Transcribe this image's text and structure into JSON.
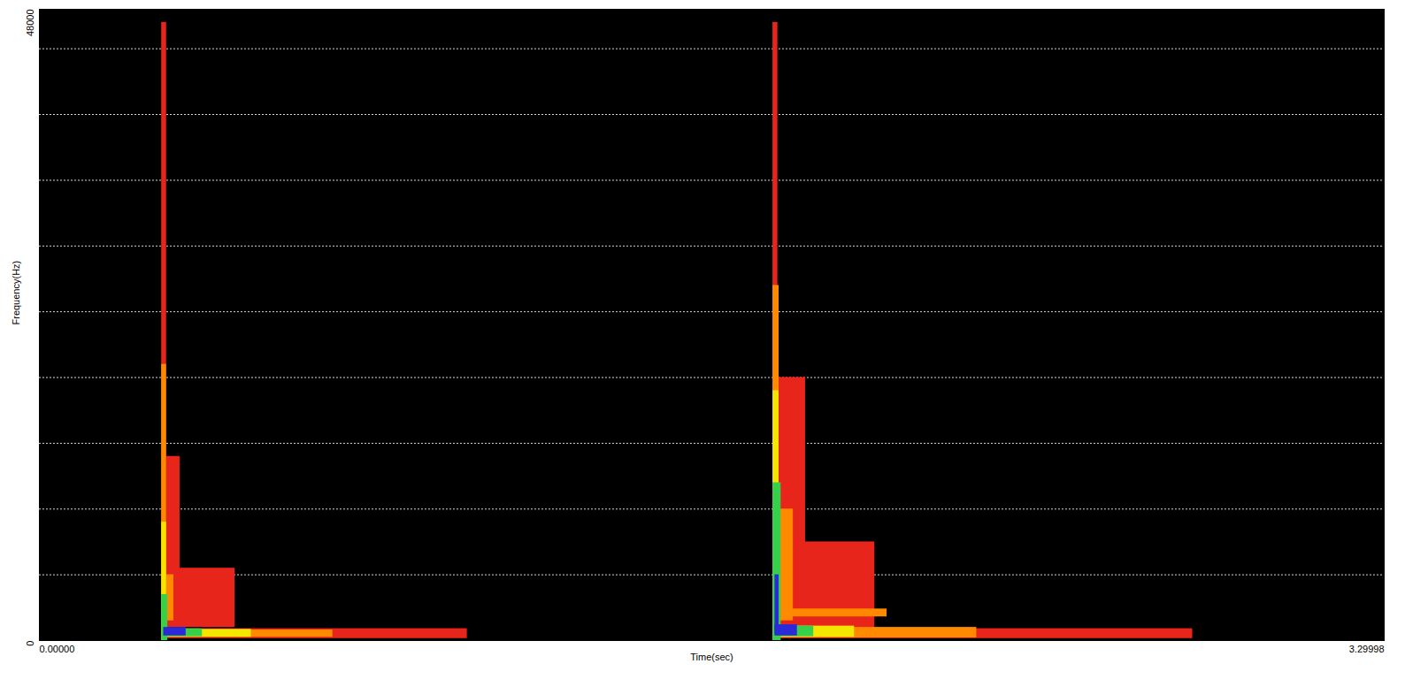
{
  "chart_data": {
    "type": "heatmap",
    "x_label": "Time(sec)",
    "y_label": "Frequency(Hz)",
    "xlim": [
      0,
      3.29998
    ],
    "ylim": [
      0,
      48000
    ],
    "xticks": [
      {
        "value": 0,
        "label": "0.00000"
      },
      3.29998
    ],
    "yticks": [
      0,
      48000
    ],
    "grid": true,
    "ygrid": [
      5000,
      10000,
      15000,
      20000,
      25000,
      30000,
      35000,
      40000,
      45000
    ],
    "levels": [
      1,
      2,
      3,
      4,
      5
    ],
    "level_colors": [
      "#e8251b",
      "#ff8a00",
      "#f5e600",
      "#36d04a",
      "#2a2ad8"
    ],
    "cells": [
      {
        "t0": 0.3,
        "t1": 0.312,
        "f0": 0,
        "f1": 47000,
        "level": 1
      },
      {
        "t0": 0.312,
        "t1": 0.345,
        "f0": 1500,
        "f1": 14000,
        "level": 1
      },
      {
        "t0": 0.312,
        "t1": 0.48,
        "f0": 1000,
        "f1": 5500,
        "level": 1
      },
      {
        "t0": 0.312,
        "t1": 1.05,
        "f0": 150,
        "f1": 900,
        "level": 1
      },
      {
        "t0": 0.3,
        "t1": 0.312,
        "f0": 0,
        "f1": 21000,
        "level": 2
      },
      {
        "t0": 0.312,
        "t1": 0.33,
        "f0": 1500,
        "f1": 5000,
        "level": 2
      },
      {
        "t0": 0.312,
        "t1": 0.72,
        "f0": 250,
        "f1": 800,
        "level": 2
      },
      {
        "t0": 0.3,
        "t1": 0.312,
        "f0": 0,
        "f1": 9000,
        "level": 3
      },
      {
        "t0": 0.312,
        "t1": 0.52,
        "f0": 250,
        "f1": 850,
        "level": 3
      },
      {
        "t0": 0.3,
        "t1": 0.315,
        "f0": 0,
        "f1": 3500,
        "level": 4
      },
      {
        "t0": 0.305,
        "t1": 0.4,
        "f0": 300,
        "f1": 900,
        "level": 4
      },
      {
        "t0": 0.305,
        "t1": 0.36,
        "f0": 350,
        "f1": 1000,
        "level": 5
      },
      {
        "t0": 1.8,
        "t1": 1.812,
        "f0": 0,
        "f1": 47000,
        "level": 1
      },
      {
        "t0": 1.812,
        "t1": 1.88,
        "f0": 1500,
        "f1": 20000,
        "level": 1
      },
      {
        "t0": 1.812,
        "t1": 2.05,
        "f0": 800,
        "f1": 7500,
        "level": 1
      },
      {
        "t0": 1.812,
        "t1": 2.83,
        "f0": 150,
        "f1": 900,
        "level": 1
      },
      {
        "t0": 1.8,
        "t1": 1.815,
        "f0": 0,
        "f1": 27000,
        "level": 2
      },
      {
        "t0": 1.812,
        "t1": 1.85,
        "f0": 1500,
        "f1": 10000,
        "level": 2
      },
      {
        "t0": 1.812,
        "t1": 2.08,
        "f0": 1800,
        "f1": 2400,
        "level": 2
      },
      {
        "t0": 1.812,
        "t1": 2.3,
        "f0": 200,
        "f1": 1000,
        "level": 2
      },
      {
        "t0": 1.8,
        "t1": 1.815,
        "f0": 0,
        "f1": 19000,
        "level": 3
      },
      {
        "t0": 1.812,
        "t1": 2.0,
        "f0": 250,
        "f1": 1100,
        "level": 3
      },
      {
        "t0": 1.8,
        "t1": 1.82,
        "f0": 0,
        "f1": 12000,
        "level": 4
      },
      {
        "t0": 1.805,
        "t1": 1.9,
        "f0": 300,
        "f1": 1100,
        "level": 4
      },
      {
        "t0": 1.805,
        "t1": 1.815,
        "f0": 500,
        "f1": 5000,
        "level": 5
      },
      {
        "t0": 1.805,
        "t1": 1.86,
        "f0": 350,
        "f1": 1200,
        "level": 5
      }
    ]
  }
}
